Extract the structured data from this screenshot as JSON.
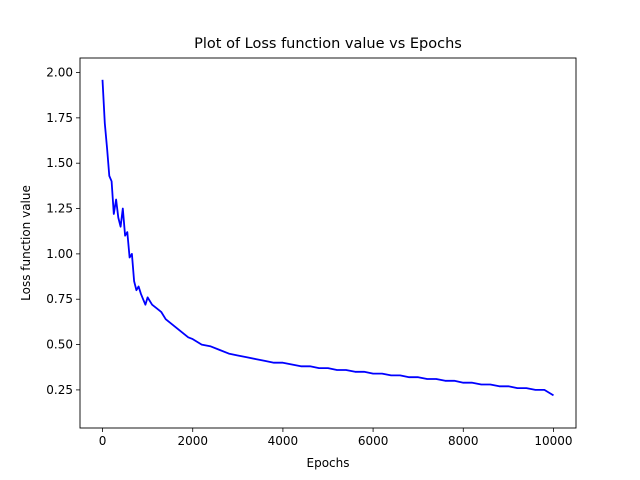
{
  "chart_data": {
    "type": "line",
    "title": "Plot of Loss function value vs Epochs",
    "xlabel": "Epochs",
    "ylabel": "Loss function value",
    "xlim": [
      -500,
      10500
    ],
    "ylim": [
      0.04,
      2.08
    ],
    "xticks": [
      0,
      2000,
      4000,
      6000,
      8000,
      10000
    ],
    "xtick_labels": [
      "0",
      "2000",
      "4000",
      "6000",
      "8000",
      "10000"
    ],
    "yticks": [
      0.25,
      0.5,
      0.75,
      1.0,
      1.25,
      1.5,
      1.75,
      2.0
    ],
    "ytick_labels": [
      "0.25",
      "0.50",
      "0.75",
      "1.00",
      "1.25",
      "1.50",
      "1.75",
      "2.00"
    ],
    "grid": false,
    "series": [
      {
        "color": "#0000ff",
        "x": [
          0,
          50,
          100,
          150,
          200,
          250,
          300,
          350,
          400,
          450,
          500,
          550,
          600,
          650,
          700,
          750,
          800,
          850,
          900,
          950,
          1000,
          1100,
          1200,
          1300,
          1400,
          1500,
          1600,
          1700,
          1800,
          1900,
          2000,
          2200,
          2400,
          2600,
          2800,
          3000,
          3200,
          3400,
          3600,
          3800,
          4000,
          4200,
          4400,
          4600,
          4800,
          5000,
          5200,
          5400,
          5600,
          5800,
          6000,
          6200,
          6400,
          6600,
          6800,
          7000,
          7200,
          7400,
          7600,
          7800,
          8000,
          8200,
          8400,
          8600,
          8800,
          9000,
          9200,
          9400,
          9600,
          9800,
          10000
        ],
        "values": [
          1.96,
          1.72,
          1.58,
          1.43,
          1.4,
          1.22,
          1.3,
          1.2,
          1.15,
          1.25,
          1.1,
          1.12,
          0.98,
          1.0,
          0.85,
          0.8,
          0.82,
          0.78,
          0.75,
          0.72,
          0.76,
          0.72,
          0.7,
          0.68,
          0.64,
          0.62,
          0.6,
          0.58,
          0.56,
          0.54,
          0.53,
          0.5,
          0.49,
          0.47,
          0.45,
          0.44,
          0.43,
          0.42,
          0.41,
          0.4,
          0.4,
          0.39,
          0.38,
          0.38,
          0.37,
          0.37,
          0.36,
          0.36,
          0.35,
          0.35,
          0.34,
          0.34,
          0.33,
          0.33,
          0.32,
          0.32,
          0.31,
          0.31,
          0.3,
          0.3,
          0.29,
          0.29,
          0.28,
          0.28,
          0.27,
          0.27,
          0.26,
          0.26,
          0.25,
          0.25,
          0.22
        ]
      }
    ]
  }
}
